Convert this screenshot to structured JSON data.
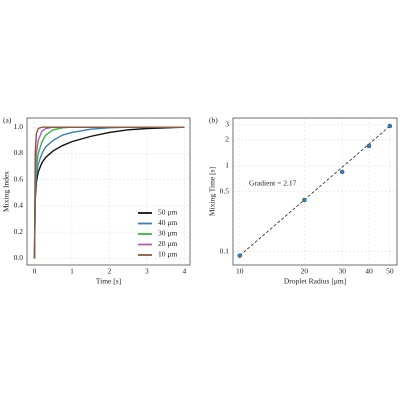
{
  "chart_data": [
    {
      "type": "line",
      "panel_label": "(a)",
      "xlabel": "Time [s]",
      "ylabel": "Mixing Index",
      "x": [
        0,
        0.02,
        0.05,
        0.1,
        0.2,
        0.3,
        0.5,
        0.75,
        1,
        1.5,
        2,
        2.5,
        3,
        4
      ],
      "series": [
        {
          "name": "50 μm",
          "color": "#111111",
          "values": [
            0,
            0.45,
            0.58,
            0.66,
            0.73,
            0.77,
            0.82,
            0.86,
            0.89,
            0.93,
            0.96,
            0.98,
            0.99,
            1.0
          ]
        },
        {
          "name": "40 μm",
          "color": "#3a7fb5",
          "values": [
            0,
            0.5,
            0.64,
            0.72,
            0.8,
            0.85,
            0.9,
            0.94,
            0.96,
            0.985,
            0.995,
            1.0,
            1.0,
            1.0
          ]
        },
        {
          "name": "30 μm",
          "color": "#3cb043",
          "values": [
            0,
            0.55,
            0.7,
            0.8,
            0.89,
            0.94,
            0.98,
            0.995,
            1.0,
            1.0,
            1.0,
            1.0,
            1.0,
            1.0
          ]
        },
        {
          "name": "20 μm",
          "color": "#b05fb5",
          "values": [
            0,
            0.62,
            0.8,
            0.9,
            0.97,
            0.99,
            1.0,
            1.0,
            1.0,
            1.0,
            1.0,
            1.0,
            1.0,
            1.0
          ]
        },
        {
          "name": "10 μm",
          "color": "#8b5a3c",
          "values": [
            0,
            0.8,
            0.95,
            0.99,
            1.0,
            1.0,
            1.0,
            1.0,
            1.0,
            1.0,
            1.0,
            1.0,
            1.0,
            1.0
          ]
        }
      ],
      "xlim": [
        -0.2,
        4.15
      ],
      "xticks": [
        0,
        1,
        2,
        3,
        4
      ],
      "ylim": [
        -0.05,
        1.07
      ],
      "yticks": [
        {
          "value": 0,
          "label": "0.0"
        },
        0.2,
        0.4,
        0.6,
        0.8,
        {
          "value": 1,
          "label": "1.0"
        }
      ],
      "grid": true,
      "legend": "lower right"
    },
    {
      "type": "scatter",
      "panel_label": "(b)",
      "xlabel": "Droplet Radius [μm]",
      "ylabel": "Mixing Time [s]",
      "annotation": "Gradient = 2.17",
      "x": [
        10,
        20,
        30,
        40,
        50
      ],
      "values": [
        0.09,
        0.4,
        0.85,
        1.7,
        2.9
      ],
      "color": "#3a7fb5",
      "fit": {
        "x": [
          10,
          50
        ],
        "values": [
          0.09,
          2.9
        ],
        "color": "#222222"
      },
      "log_x": true,
      "log_y": true,
      "xlim": [
        9.3,
        54
      ],
      "xticks": [
        10,
        20,
        30,
        40,
        50
      ],
      "ylim": [
        0.07,
        3.6
      ],
      "yticks": [
        0.1,
        0.5,
        1,
        2,
        3
      ],
      "grid": true
    }
  ]
}
